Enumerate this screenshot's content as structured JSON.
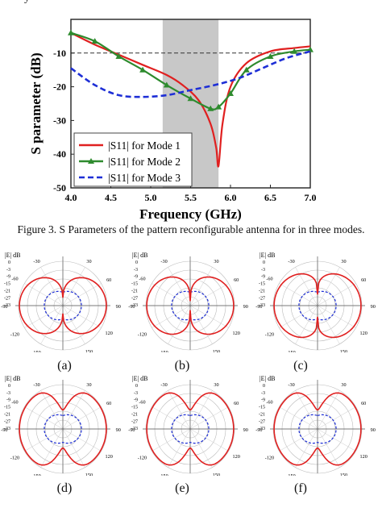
{
  "chart_data": [
    {
      "type": "line",
      "xlabel": "Frequency (GHz)",
      "ylabel": "S parameter (dB)",
      "xlim": [
        4.0,
        7.0
      ],
      "ylim": [
        -50,
        0
      ],
      "xticks": [
        "4.0",
        "4.5",
        "5.0",
        "5.5",
        "6.0",
        "6.5",
        "7.0"
      ],
      "yticks": [
        "-10",
        "-20",
        "-30",
        "-40",
        "-50"
      ],
      "reference_line": -10,
      "shaded_band": [
        5.15,
        5.85
      ],
      "legend_position": "bottom-left",
      "series": [
        {
          "name": "|S11| for Mode 1",
          "color": "#e02020",
          "style": "solid",
          "x": [
            4.0,
            4.3,
            4.6,
            4.9,
            5.2,
            5.4,
            5.6,
            5.75,
            5.82,
            5.85,
            5.9,
            6.0,
            6.2,
            6.5,
            6.8,
            7.0
          ],
          "y": [
            -4.0,
            -7.5,
            -10.5,
            -13.5,
            -16.5,
            -19.5,
            -24.0,
            -31.0,
            -38.0,
            -43.5,
            -31.0,
            -20.0,
            -13.0,
            -9.5,
            -8.5,
            -8.0
          ]
        },
        {
          "name": "|S11| for Mode 2",
          "color": "#2e8b2e",
          "style": "solid-triangles",
          "x": [
            4.0,
            4.3,
            4.6,
            4.9,
            5.2,
            5.5,
            5.75,
            5.85,
            6.0,
            6.2,
            6.5,
            6.8,
            7.0
          ],
          "y": [
            -4.0,
            -6.5,
            -11.0,
            -15.0,
            -19.5,
            -23.5,
            -26.5,
            -26.0,
            -22.0,
            -15.0,
            -11.0,
            -9.5,
            -9.0
          ]
        },
        {
          "name": "|S11| for Mode 3",
          "color": "#1e2fd6",
          "style": "dashed",
          "x": [
            4.0,
            4.3,
            4.6,
            4.9,
            5.2,
            5.5,
            5.8,
            6.1,
            6.4,
            6.7,
            7.0
          ],
          "y": [
            -14.5,
            -19.5,
            -22.5,
            -23.0,
            -22.5,
            -21.0,
            -19.5,
            -17.5,
            -14.5,
            -11.5,
            -9.5
          ]
        }
      ]
    }
  ],
  "figure_caption": "Figure 3. S Parameters of the pattern reconfigurable antenna for in three modes.",
  "top_fragment": "y",
  "legend_labels": [
    "|S11| for Mode 1",
    "|S11| for Mode 2",
    "|S11| for Mode 3"
  ],
  "colors": {
    "mode1": "#e02020",
    "mode2": "#2e8b2e",
    "mode3": "#1e2fd6",
    "band": "#c8c8c8"
  },
  "polar_plots": [
    {
      "label": "(a)",
      "header": "|E| dB",
      "shape": "lobes-side"
    },
    {
      "label": "(b)",
      "header": "|E| dB",
      "shape": "lobes-side-deep"
    },
    {
      "label": "(c)",
      "header": "|E| dB",
      "shape": "lobes-wide"
    },
    {
      "label": "(d)",
      "header": "|E| dB",
      "shape": "circle-notched"
    },
    {
      "label": "(e)",
      "header": "|E| dB",
      "shape": "circle-notched"
    },
    {
      "label": "(f)",
      "header": "|E| dB",
      "shape": "circle-notched"
    }
  ],
  "polar_angle_labels": [
    "-30",
    "30",
    "60",
    "-60",
    "-90",
    "90",
    "-120",
    "120",
    "-150",
    "150",
    "-180",
    "180"
  ],
  "polar_radial_labels": [
    "0",
    "-3",
    "-9",
    "-15",
    "-21",
    "-27",
    "-33"
  ]
}
